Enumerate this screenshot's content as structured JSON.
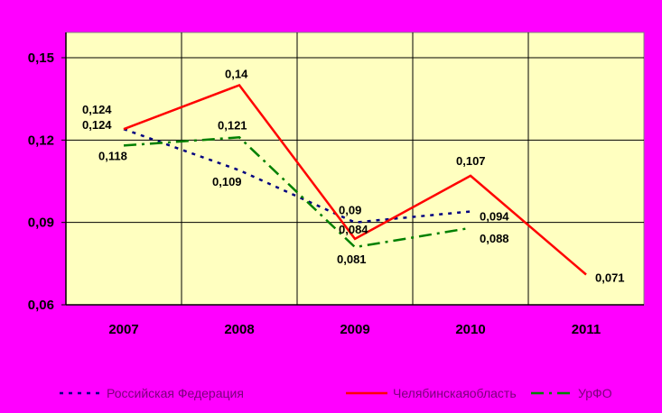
{
  "chart_data": {
    "type": "line",
    "categories": [
      "2007",
      "2008",
      "2009",
      "2010",
      "2011"
    ],
    "ylim": [
      0.06,
      0.16
    ],
    "yticks": [
      0.06,
      0.09,
      0.12,
      0.15
    ],
    "ytick_labels": [
      "0,06",
      "0,09",
      "0,12",
      "0,15"
    ],
    "grid": true,
    "plot_background": "#ffffc0",
    "legend_position": "bottom",
    "series": [
      {
        "name": "Российская Федерация",
        "values": [
          0.124,
          0.109,
          0.09,
          0.094,
          null
        ],
        "labels": [
          "0,124",
          "0,109",
          "0,09",
          "0,094",
          ""
        ],
        "color": "#000080",
        "style": "dotted"
      },
      {
        "name": "Челябинскаяобласть",
        "values": [
          0.124,
          0.14,
          0.084,
          0.107,
          0.071
        ],
        "labels": [
          "0,124",
          "0,14",
          "0,084",
          "0,107",
          "0,071"
        ],
        "color": "#ff0000",
        "style": "solid"
      },
      {
        "name": "УрФО",
        "values": [
          0.118,
          0.121,
          0.081,
          0.088,
          null
        ],
        "labels": [
          "0,118",
          "0,121",
          "0,081",
          "0,088",
          ""
        ],
        "color": "#008000",
        "style": "dashdot"
      }
    ]
  }
}
